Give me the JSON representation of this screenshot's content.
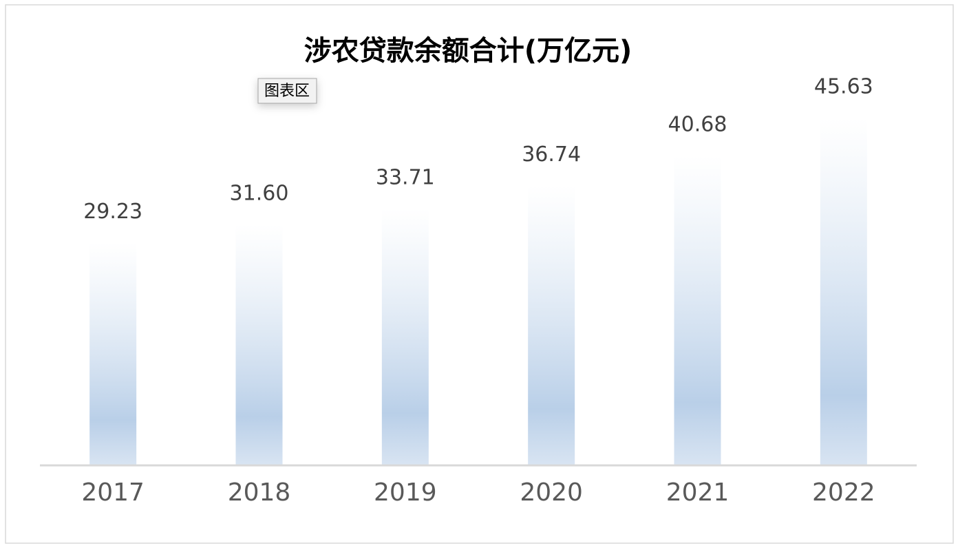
{
  "chart_data": {
    "type": "bar",
    "title": "涉农贷款余额合计(万亿元)",
    "categories": [
      "2017",
      "2018",
      "2019",
      "2020",
      "2021",
      "2022"
    ],
    "values": [
      29.23,
      31.6,
      33.71,
      36.74,
      40.68,
      45.63
    ],
    "value_labels": [
      "29.23",
      "31.60",
      "33.71",
      "36.74",
      "40.68",
      "45.63"
    ],
    "color": "#b9cfe8",
    "ylim": [
      0,
      50
    ],
    "tooltip": "图表区"
  }
}
